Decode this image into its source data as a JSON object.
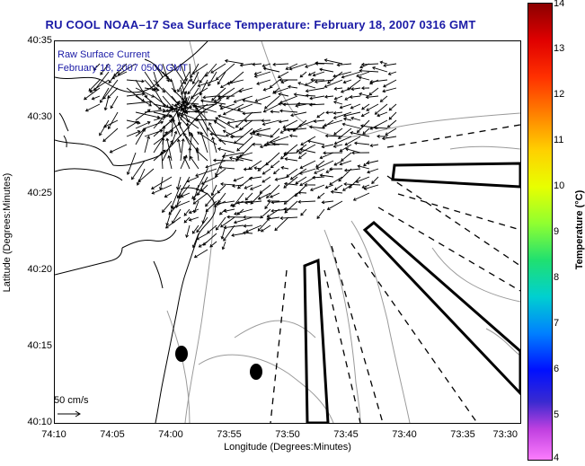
{
  "title": "RU COOL  NOAA–17  Sea Surface Temperature:  February 18, 2007 0316 GMT",
  "legend": {
    "line1": "Raw Surface Current",
    "line2": "February 18, 2007 0500 GMT"
  },
  "scale_label": "50 cm/s",
  "axes": {
    "x_title": "Longitude (Degrees:Minutes)",
    "y_title": "Latitude (Degrees:Minutes)",
    "x_ticks": [
      "74:10",
      "74:05",
      "74:00",
      "73:55",
      "73:50",
      "73:45",
      "73:40",
      "73:35",
      "73:30"
    ],
    "y_ticks": [
      "40:35",
      "40:30",
      "40:25",
      "40:20",
      "40:15",
      "40:10"
    ]
  },
  "colorbar": {
    "title": "Temperature (°C)",
    "ticks": [
      "14",
      "13",
      "12",
      "11",
      "10",
      "9",
      "8",
      "7",
      "6",
      "5",
      "4"
    ]
  },
  "colors": {
    "title_text": "#1a1aa6",
    "land_outline": "#000000",
    "bathymetry": "#999999",
    "vectors": "#000000"
  },
  "map_extent": {
    "lon_range": [
      "74:10",
      "73:30"
    ],
    "lat_range": [
      "40:10",
      "40:35"
    ]
  },
  "vector_field": {
    "type": "quiver",
    "visible_vector_count_approx": 450
  }
}
